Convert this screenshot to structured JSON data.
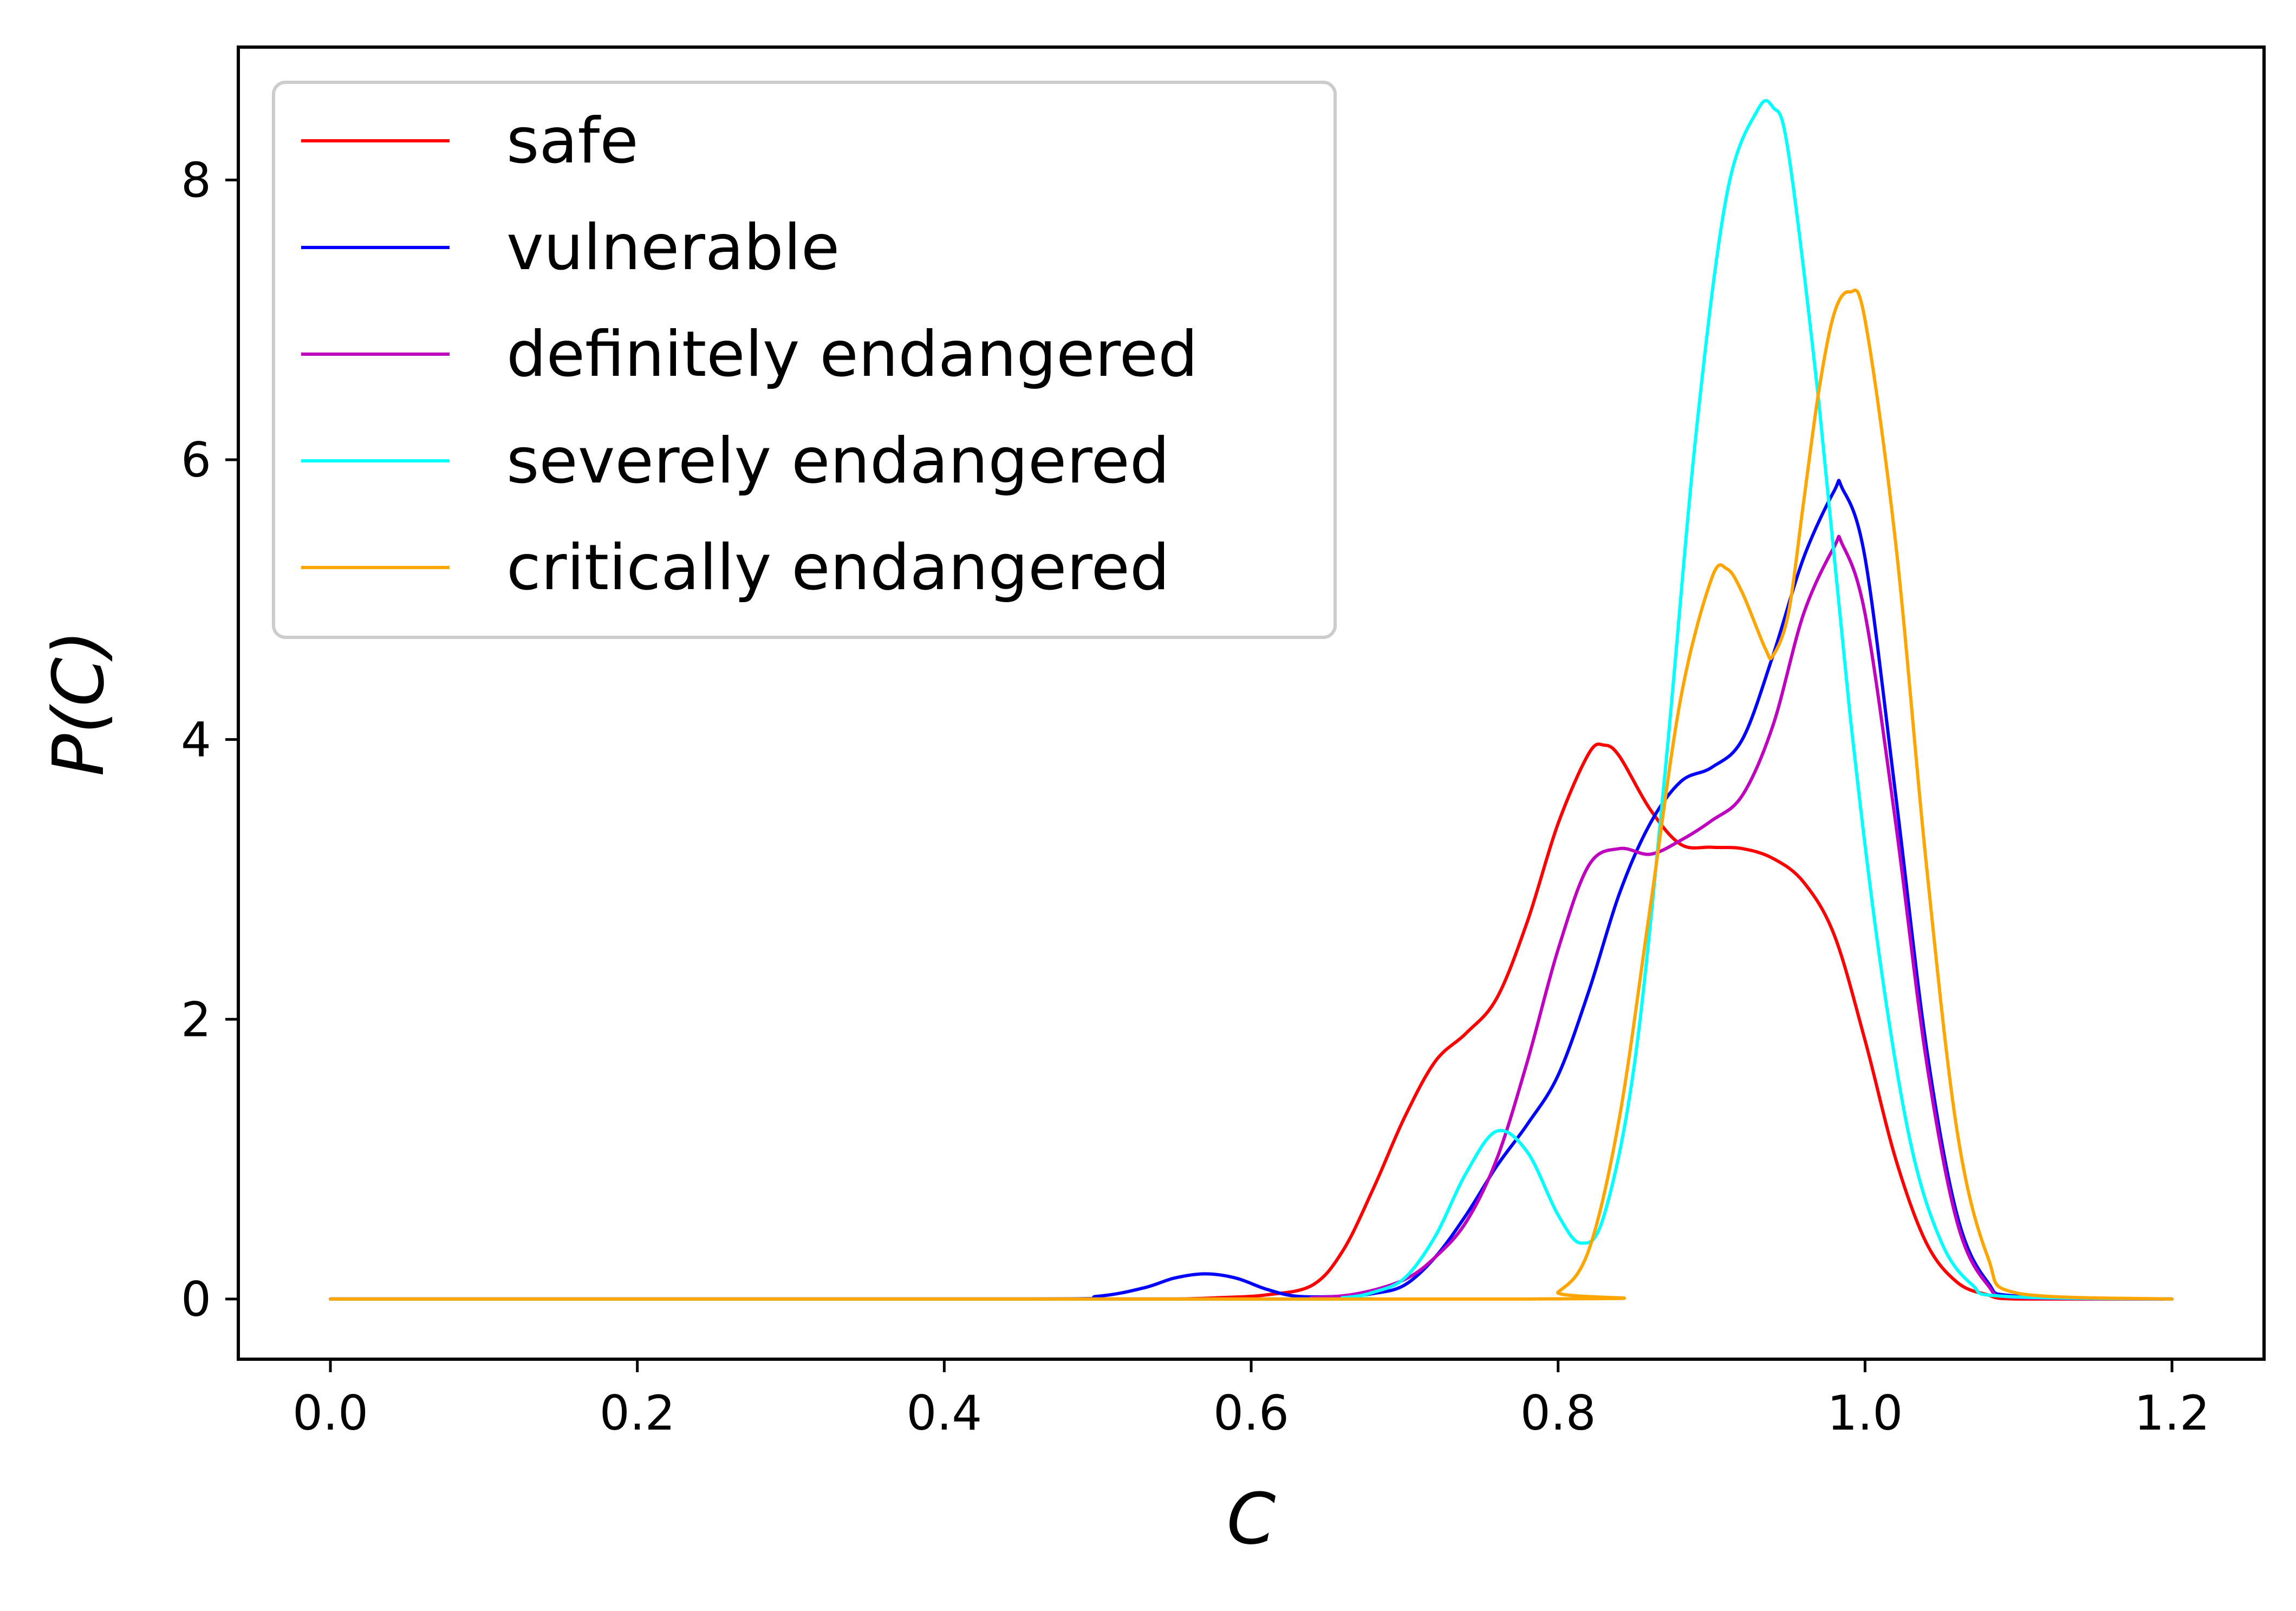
{
  "chart_data": {
    "type": "line",
    "title": "",
    "xlabel": "C",
    "ylabel": "P(C)",
    "xlim": [
      -0.06,
      1.26
    ],
    "ylim": [
      -0.43,
      8.95
    ],
    "xticks": [
      0.0,
      0.2,
      0.4,
      0.6,
      0.8,
      1.0,
      1.2
    ],
    "xtick_labels": [
      "0.0",
      "0.2",
      "0.4",
      "0.6",
      "0.8",
      "1.0",
      "1.2"
    ],
    "yticks": [
      0,
      2,
      4,
      6,
      8
    ],
    "ytick_labels": [
      "0",
      "2",
      "4",
      "6",
      "8"
    ],
    "grid": false,
    "legend_position": "top-left",
    "series": [
      {
        "name": "safe",
        "color": "#ff0000",
        "x": [
          0.0,
          0.5,
          0.55,
          0.58,
          0.61,
          0.64,
          0.66,
          0.68,
          0.7,
          0.72,
          0.74,
          0.76,
          0.78,
          0.8,
          0.82,
          0.83,
          0.84,
          0.86,
          0.88,
          0.9,
          0.92,
          0.94,
          0.96,
          0.98,
          1.0,
          1.02,
          1.04,
          1.06,
          1.08,
          1.1,
          1.2
        ],
        "y": [
          0,
          0,
          0.0,
          0.01,
          0.03,
          0.1,
          0.35,
          0.8,
          1.3,
          1.7,
          1.9,
          2.15,
          2.7,
          3.4,
          3.9,
          3.96,
          3.88,
          3.5,
          3.25,
          3.23,
          3.22,
          3.15,
          2.98,
          2.6,
          1.85,
          1.0,
          0.4,
          0.12,
          0.03,
          0.0,
          0
        ]
      },
      {
        "name": "vulnerable",
        "color": "#0000ff",
        "x": [
          0.0,
          0.45,
          0.5,
          0.53,
          0.55,
          0.57,
          0.59,
          0.61,
          0.63,
          0.66,
          0.68,
          0.7,
          0.72,
          0.74,
          0.76,
          0.78,
          0.8,
          0.82,
          0.84,
          0.86,
          0.88,
          0.9,
          0.92,
          0.94,
          0.96,
          0.98,
          0.985,
          1.0,
          1.02,
          1.04,
          1.06,
          1.08,
          1.1,
          1.2
        ],
        "y": [
          0,
          0,
          0.02,
          0.08,
          0.15,
          0.18,
          0.15,
          0.07,
          0.02,
          0.02,
          0.04,
          0.1,
          0.3,
          0.6,
          0.95,
          1.25,
          1.6,
          2.2,
          2.9,
          3.4,
          3.7,
          3.8,
          4.0,
          4.6,
          5.3,
          5.78,
          5.8,
          5.3,
          3.6,
          1.8,
          0.6,
          0.12,
          0.02,
          0
        ]
      },
      {
        "name": "definitely endangered",
        "color": "#bf00bf",
        "x": [
          0.0,
          0.6,
          0.64,
          0.67,
          0.7,
          0.72,
          0.74,
          0.76,
          0.78,
          0.8,
          0.82,
          0.84,
          0.86,
          0.88,
          0.9,
          0.92,
          0.94,
          0.96,
          0.98,
          0.985,
          1.0,
          1.02,
          1.04,
          1.06,
          1.08,
          1.1,
          1.2
        ],
        "y": [
          0,
          0,
          0.01,
          0.04,
          0.14,
          0.3,
          0.55,
          1.0,
          1.7,
          2.5,
          3.1,
          3.22,
          3.18,
          3.28,
          3.42,
          3.6,
          4.1,
          4.9,
          5.38,
          5.4,
          4.9,
          3.4,
          1.7,
          0.55,
          0.1,
          0.01,
          0
        ]
      },
      {
        "name": "severely endangered",
        "color": "#00ffff",
        "x": [
          0.0,
          0.62,
          0.66,
          0.68,
          0.7,
          0.72,
          0.74,
          0.76,
          0.78,
          0.8,
          0.815,
          0.83,
          0.85,
          0.87,
          0.89,
          0.91,
          0.93,
          0.94,
          0.95,
          0.97,
          0.99,
          1.01,
          1.03,
          1.05,
          1.07,
          1.09,
          1.2
        ],
        "y": [
          0,
          0,
          0.01,
          0.05,
          0.15,
          0.45,
          0.9,
          1.2,
          1.05,
          0.6,
          0.4,
          0.6,
          1.7,
          3.8,
          6.2,
          7.9,
          8.5,
          8.52,
          8.2,
          6.4,
          4.2,
          2.4,
          1.1,
          0.4,
          0.1,
          0.02,
          0
        ]
      },
      {
        "name": "critically endangered",
        "color": "#ffa500",
        "x": [
          0.0,
          0.78,
          0.8,
          0.82,
          0.84,
          0.86,
          0.88,
          0.9,
          0.91,
          0.92,
          0.935,
          0.94,
          0.95,
          0.96,
          0.97,
          0.98,
          0.99,
          1.0,
          1.02,
          1.04,
          1.06,
          1.08,
          1.1,
          1.2
        ],
        "y": [
          0,
          0.0,
          0.05,
          0.35,
          1.3,
          2.8,
          4.3,
          5.15,
          5.22,
          5.05,
          4.65,
          4.6,
          4.9,
          5.7,
          6.5,
          7.05,
          7.2,
          7.0,
          5.4,
          3.1,
          1.2,
          0.3,
          0.04,
          0
        ]
      }
    ]
  }
}
